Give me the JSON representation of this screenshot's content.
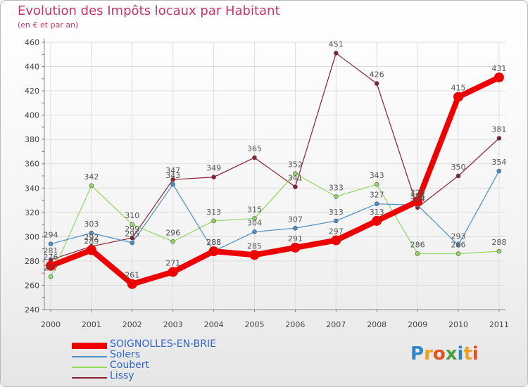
{
  "title": "Evolution des Impôts locaux par Habitant",
  "subtitle": "(en € et par an)",
  "logo": {
    "text": "Proxiti",
    "letters": [
      {
        "ch": "P",
        "color": "#2e86c8"
      },
      {
        "ch": "r",
        "color": "#f0a020"
      },
      {
        "ch": "o",
        "color": "#e05020"
      },
      {
        "ch": "x",
        "color": "#4aa040"
      },
      {
        "ch": "i",
        "color": "#2e86c8"
      },
      {
        "ch": "t",
        "color": "#f0a020"
      },
      {
        "ch": "i",
        "color": "#e05020"
      }
    ]
  },
  "chart_data": {
    "type": "line",
    "title": "Evolution des Impôts locaux par Habitant",
    "ylabel": "(en € et par an)",
    "xlabel": "",
    "categories": [
      "2000",
      "2001",
      "2002",
      "2003",
      "2004",
      "2005",
      "2006",
      "2007",
      "2008",
      "2009",
      "2010",
      "2011"
    ],
    "ylim": [
      240,
      460
    ],
    "yticks": [
      240,
      260,
      280,
      300,
      320,
      340,
      360,
      380,
      400,
      420,
      440,
      460
    ],
    "grid": true,
    "series": [
      {
        "name": "SOIGNOLLES-EN-BRIE",
        "color": "#ee0000",
        "values": [
          276,
          289,
          261,
          271,
          288,
          285,
          291,
          297,
          313,
          329,
          415,
          431
        ],
        "labels": [
          "276",
          "289",
          "261",
          "271",
          "288",
          "285",
          "291",
          "297",
          "313",
          "329",
          "415",
          "431"
        ]
      },
      {
        "name": "Solers",
        "color": "#4a90c8",
        "values": [
          294,
          303,
          295,
          343,
          288,
          304,
          307,
          313,
          327,
          326,
          293,
          354
        ],
        "labels": [
          "294",
          "303",
          "295",
          "343",
          "288",
          "304",
          "307",
          "313",
          "327",
          "326",
          "293",
          "354"
        ]
      },
      {
        "name": "Coubert",
        "color": "#90d860",
        "values": [
          267,
          342,
          310,
          296,
          313,
          315,
          352,
          333,
          343,
          286,
          286,
          288
        ],
        "labels": [
          "267",
          "342",
          "310",
          "296",
          "313",
          "315",
          "352",
          "333",
          "343",
          "286",
          "286",
          "288"
        ]
      },
      {
        "name": "Lissy",
        "color": "#8b2030",
        "values": [
          281,
          292,
          299,
          347,
          349,
          365,
          341,
          451,
          426,
          324,
          350,
          381
        ],
        "labels": [
          "281",
          "292",
          "299",
          "347",
          "349",
          "365",
          "341",
          "451",
          "426",
          "324",
          "350",
          "381"
        ]
      }
    ]
  }
}
